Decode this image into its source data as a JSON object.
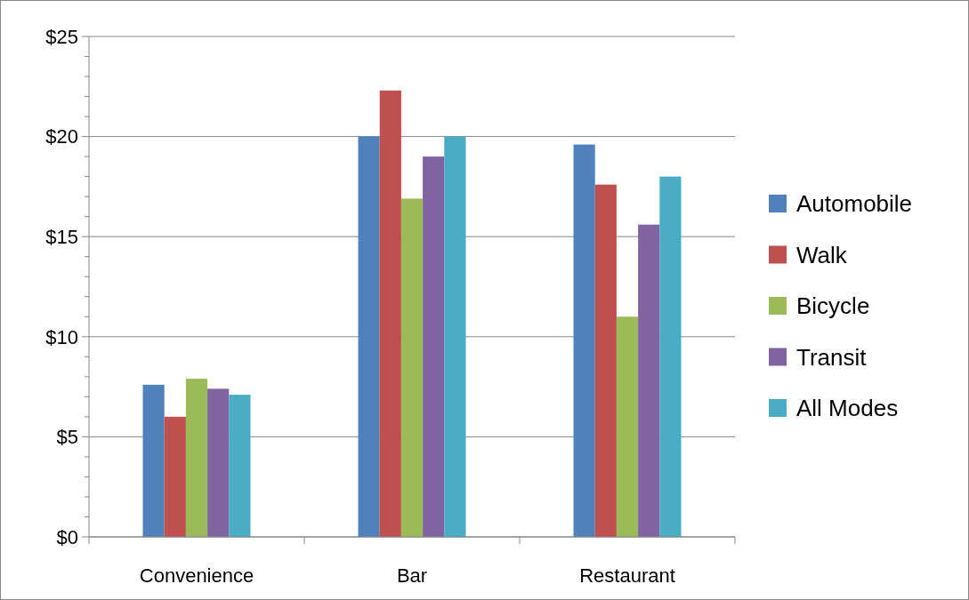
{
  "chart_data": {
    "type": "bar",
    "categories": [
      "Convenience",
      "Bar",
      "Restaurant"
    ],
    "series": [
      {
        "name": "Automobile",
        "color": "#4f81bd",
        "values": [
          7.6,
          20.0,
          19.6
        ]
      },
      {
        "name": "Walk",
        "color": "#c0504d",
        "values": [
          6.0,
          22.3,
          17.6
        ]
      },
      {
        "name": "Bicycle",
        "color": "#9bbb59",
        "values": [
          7.9,
          16.9,
          11.0
        ]
      },
      {
        "name": "Transit",
        "color": "#8064a2",
        "values": [
          7.4,
          19.0,
          15.6
        ]
      },
      {
        "name": "All Modes",
        "color": "#4bacc6",
        "values": [
          7.1,
          20.0,
          18.0
        ]
      }
    ],
    "ylim": [
      0,
      25
    ],
    "yticks": [
      {
        "value": 0,
        "label": "$0"
      },
      {
        "value": 1,
        "label": null
      },
      {
        "value": 2,
        "label": null
      },
      {
        "value": 3,
        "label": null
      },
      {
        "value": 4,
        "label": null
      },
      {
        "value": 5,
        "label": "$5"
      },
      {
        "value": 6,
        "label": null
      },
      {
        "value": 7,
        "label": null
      },
      {
        "value": 8,
        "label": null
      },
      {
        "value": 9,
        "label": null
      },
      {
        "value": 10,
        "label": "$10"
      },
      {
        "value": 11,
        "label": null
      },
      {
        "value": 12,
        "label": null
      },
      {
        "value": 13,
        "label": null
      },
      {
        "value": 14,
        "label": null
      },
      {
        "value": 15,
        "label": "$15"
      },
      {
        "value": 16,
        "label": null
      },
      {
        "value": 17,
        "label": null
      },
      {
        "value": 18,
        "label": null
      },
      {
        "value": 19,
        "label": null
      },
      {
        "value": 20,
        "label": "$20"
      },
      {
        "value": 21,
        "label": null
      },
      {
        "value": 22,
        "label": null
      },
      {
        "value": 23,
        "label": null
      },
      {
        "value": 24,
        "label": null
      },
      {
        "value": 25,
        "label": "$25"
      }
    ],
    "grid": "y",
    "legend": "right"
  }
}
